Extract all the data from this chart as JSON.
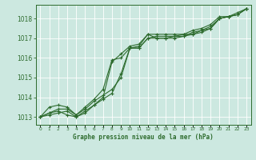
{
  "title": "Graphe pression niveau de la mer (hPa)",
  "background_color": "#cce8e0",
  "grid_color": "#ffffff",
  "line_color": "#2d6b2d",
  "x_labels": [
    "0",
    "1",
    "2",
    "3",
    "4",
    "5",
    "6",
    "7",
    "8",
    "9",
    "10",
    "11",
    "12",
    "13",
    "14",
    "15",
    "16",
    "17",
    "18",
    "19",
    "20",
    "21",
    "22",
    "23"
  ],
  "ylim": [
    1012.6,
    1018.7
  ],
  "xlim": [
    -0.5,
    23.5
  ],
  "yticks": [
    1013,
    1014,
    1015,
    1016,
    1017,
    1018
  ],
  "series": [
    [
      1013.0,
      1013.2,
      1013.3,
      1013.1,
      1013.0,
      1013.2,
      1013.6,
      1013.9,
      1014.2,
      1015.2,
      1016.5,
      1016.6,
      1017.2,
      1017.2,
      1017.2,
      1017.2,
      1017.2,
      1017.2,
      1017.3,
      1017.5,
      1018.0,
      1018.1,
      1018.2,
      1018.5
    ],
    [
      1013.0,
      1013.5,
      1013.6,
      1013.5,
      1013.1,
      1013.4,
      1013.8,
      1014.1,
      1014.4,
      1015.0,
      1016.5,
      1016.5,
      1017.0,
      1017.0,
      1017.0,
      1017.1,
      1017.1,
      1017.2,
      1017.4,
      1017.6,
      1018.0,
      1018.1,
      1018.3,
      1018.5
    ],
    [
      1013.0,
      1013.1,
      1013.2,
      1013.3,
      1013.0,
      1013.3,
      1013.6,
      1014.0,
      1015.8,
      1016.2,
      1016.6,
      1016.7,
      1017.2,
      1017.0,
      1017.0,
      1017.0,
      1017.1,
      1017.3,
      1017.4,
      1017.5,
      1018.0,
      1018.1,
      1018.2,
      1018.5
    ],
    [
      1013.0,
      1013.2,
      1013.4,
      1013.4,
      1013.1,
      1013.5,
      1013.9,
      1014.4,
      1015.9,
      1016.0,
      1016.5,
      1016.5,
      1017.0,
      1017.1,
      1017.1,
      1017.1,
      1017.2,
      1017.4,
      1017.5,
      1017.7,
      1018.1,
      1018.1,
      1018.2,
      1018.5
    ]
  ]
}
